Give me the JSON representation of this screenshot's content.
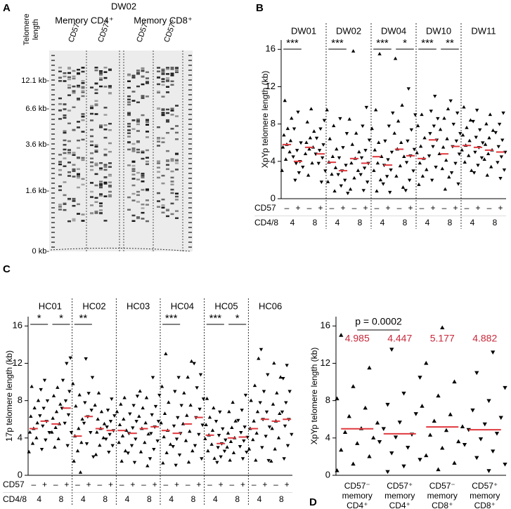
{
  "panel_a": {
    "panel_label": "A",
    "title": "DW02",
    "y_label": [
      "Telomere",
      "length"
    ],
    "groups": [
      "Memory CD4⁺",
      "Memory CD8⁺"
    ],
    "lanes": [
      "CD57⁻",
      "CD57⁺",
      "CD57⁻",
      "CD57⁺"
    ],
    "size_labels": [
      "12.1 kb-",
      "6.6 kb-",
      "3.6 kb-",
      "1.6 kb-",
      "0 kb-"
    ]
  },
  "chart_data": [
    {
      "type": "dotplot",
      "panel_label": "B",
      "y_label": "XpYp telomere length (kb)",
      "ylim": [
        0,
        17
      ],
      "yticks": [
        0,
        4,
        8,
        12,
        16
      ],
      "markers": [
        "triangle-up",
        "triangle-down"
      ],
      "color": "#000000",
      "median_color": "#e0393e",
      "facets": [
        {
          "name": "DW01",
          "stars": [
            "***",
            null
          ]
        },
        {
          "name": "DW02",
          "stars": [
            "***",
            null
          ]
        },
        {
          "name": "DW04",
          "stars": [
            "***",
            "*"
          ]
        },
        {
          "name": "DW10",
          "stars": [
            "***",
            "**"
          ]
        },
        {
          "name": "DW11",
          "stars": [
            null,
            null
          ]
        }
      ],
      "row_labels": [
        "CD57",
        "CD4/8"
      ],
      "cd57": [
        "–",
        "+"
      ],
      "cd48": [
        "4",
        "8"
      ],
      "groups": [
        {
          "median": 5.8,
          "values": [
            3.0,
            4.2,
            5.0,
            5.5,
            5.8,
            6.2,
            6.8,
            7.5,
            8.6,
            10.5
          ]
        },
        {
          "median": 4.0,
          "values": [
            2.0,
            2.8,
            3.4,
            3.8,
            4.0,
            4.5,
            5.2,
            6.0,
            7.5,
            9.3
          ]
        },
        {
          "median": 5.5,
          "values": [
            2.5,
            3.8,
            4.8,
            5.3,
            5.5,
            6.0,
            6.5,
            7.2,
            8.2,
            9.6
          ]
        },
        {
          "median": 4.8,
          "values": [
            1.8,
            3.0,
            3.8,
            4.4,
            4.8,
            5.2,
            5.8,
            6.5,
            7.5,
            8.4
          ]
        },
        {
          "median": 3.9,
          "values": [
            0.8,
            1.8,
            2.6,
            3.3,
            3.9,
            4.5,
            5.3,
            6.4,
            7.8,
            9.5
          ]
        },
        {
          "median": 3.0,
          "values": [
            0.6,
            1.4,
            2.0,
            2.6,
            3.0,
            3.6,
            4.4,
            5.5,
            7.0,
            8.6
          ]
        },
        {
          "median": 4.3,
          "values": [
            1.0,
            2.2,
            3.0,
            3.8,
            4.3,
            5.0,
            5.8,
            7.0,
            8.5,
            15.8
          ]
        },
        {
          "median": 3.8,
          "values": [
            0.9,
            1.8,
            2.6,
            3.3,
            3.8,
            4.4,
            5.2,
            6.3,
            7.8,
            9.8
          ]
        },
        {
          "median": 4.5,
          "values": [
            0.8,
            2.0,
            3.0,
            3.8,
            4.5,
            5.2,
            6.0,
            7.5,
            9.5,
            15.5
          ]
        },
        {
          "median": 3.6,
          "values": [
            0.7,
            1.6,
            2.4,
            3.1,
            3.6,
            4.2,
            5.0,
            6.2,
            7.8,
            9.2
          ]
        },
        {
          "median": 5.3,
          "values": [
            1.2,
            2.4,
            3.5,
            4.5,
            5.3,
            6.0,
            7.0,
            8.3,
            10.0,
            15.0
          ]
        },
        {
          "median": 4.6,
          "values": [
            0.9,
            2.0,
            3.0,
            3.9,
            4.6,
            5.3,
            6.2,
            7.4,
            9.0,
            11.8
          ]
        },
        {
          "median": 4.3,
          "values": [
            1.5,
            2.4,
            3.1,
            3.8,
            4.3,
            4.9,
            5.6,
            6.5,
            7.8,
            9.0
          ]
        },
        {
          "median": 6.3,
          "values": [
            2.0,
            3.4,
            4.6,
            5.6,
            6.3,
            7.0,
            7.8,
            8.6,
            9.4,
            11.0
          ]
        },
        {
          "median": 4.8,
          "values": [
            1.0,
            2.3,
            3.2,
            4.1,
            4.8,
            5.5,
            6.4,
            7.4,
            8.6,
            9.6
          ]
        },
        {
          "median": 5.6,
          "values": [
            1.6,
            2.8,
            3.8,
            4.8,
            5.6,
            6.2,
            7.0,
            8.0,
            9.2,
            10.5
          ]
        },
        {
          "median": 5.7,
          "values": [
            3.0,
            3.9,
            4.6,
            5.2,
            5.7,
            6.2,
            6.8,
            7.6,
            8.4,
            9.8
          ]
        },
        {
          "median": 5.5,
          "values": [
            2.8,
            3.6,
            4.4,
            5.0,
            5.5,
            6.0,
            6.6,
            7.4,
            8.3,
            9.5
          ]
        },
        {
          "median": 5.2,
          "values": [
            2.5,
            3.4,
            4.2,
            4.8,
            5.2,
            5.8,
            6.5,
            7.3,
            8.0,
            9.0
          ]
        },
        {
          "median": 5.0,
          "values": [
            2.2,
            3.1,
            3.9,
            4.5,
            5.0,
            5.6,
            6.3,
            7.1,
            8.0,
            9.2
          ]
        }
      ]
    },
    {
      "type": "dotplot",
      "panel_label": "C",
      "y_label": "17p telomere length (kb)",
      "ylim": [
        0,
        17
      ],
      "yticks": [
        0,
        4,
        8,
        12,
        16
      ],
      "markers": [
        "triangle-up",
        "triangle-down"
      ],
      "color": "#000000",
      "median_color": "#e0393e",
      "facets": [
        {
          "name": "HC01",
          "stars": [
            "*",
            "*"
          ]
        },
        {
          "name": "HC02",
          "stars": [
            "**",
            null
          ]
        },
        {
          "name": "HC03",
          "stars": [
            null,
            null
          ]
        },
        {
          "name": "HC04",
          "stars": [
            "***",
            null
          ]
        },
        {
          "name": "HC05",
          "stars": [
            "***",
            "*"
          ]
        },
        {
          "name": "HC06",
          "stars": [
            null,
            null
          ]
        }
      ],
      "row_labels": [
        "CD57",
        "CD4/8"
      ],
      "cd57": [
        "–",
        "+"
      ],
      "cd48": [
        "4",
        "8"
      ],
      "groups": [
        {
          "median": 5.0,
          "values": [
            2.5,
            3.4,
            4.0,
            4.6,
            5.0,
            5.6,
            6.3,
            7.2,
            8.0,
            9.5
          ]
        },
        {
          "median": 5.8,
          "values": [
            2.8,
            3.8,
            4.6,
            5.3,
            5.8,
            6.4,
            7.2,
            8.0,
            9.2,
            10.2
          ]
        },
        {
          "median": 5.5,
          "values": [
            3.0,
            3.9,
            4.6,
            5.1,
            5.5,
            6.1,
            6.8,
            7.6,
            8.5,
            9.4
          ]
        },
        {
          "median": 7.2,
          "values": [
            3.2,
            4.6,
            5.6,
            6.5,
            7.2,
            8.0,
            9.0,
            10.2,
            12.0,
            12.6
          ]
        },
        {
          "median": 4.2,
          "values": [
            0.3,
            1.5,
            2.6,
            3.5,
            4.2,
            5.0,
            6.0,
            7.4,
            8.6,
            9.8
          ]
        },
        {
          "median": 6.3,
          "values": [
            2.0,
            3.4,
            4.6,
            5.6,
            6.3,
            7.0,
            7.8,
            8.8,
            10.5,
            12.5
          ]
        },
        {
          "median": 5.0,
          "values": [
            2.2,
            3.2,
            4.0,
            4.6,
            5.0,
            5.5,
            6.0,
            6.8,
            7.5,
            8.8
          ]
        },
        {
          "median": 4.8,
          "values": [
            2.5,
            3.2,
            3.9,
            4.4,
            4.8,
            5.2,
            5.8,
            6.4,
            7.0,
            8.2
          ]
        },
        {
          "median": 4.8,
          "values": [
            1.5,
            2.6,
            3.5,
            4.2,
            4.8,
            5.4,
            6.0,
            6.8,
            7.6,
            8.3
          ]
        },
        {
          "median": 4.5,
          "values": [
            1.4,
            2.4,
            3.2,
            3.9,
            4.5,
            5.1,
            5.8,
            6.6,
            7.5,
            8.5
          ]
        },
        {
          "median": 5.0,
          "values": [
            1.0,
            2.5,
            3.5,
            4.4,
            5.0,
            5.6,
            6.3,
            7.2,
            8.3,
            9.0
          ]
        },
        {
          "median": 5.2,
          "values": [
            1.8,
            2.8,
            3.7,
            4.5,
            5.2,
            5.8,
            6.5,
            7.4,
            8.6,
            10.5
          ]
        },
        {
          "median": 4.8,
          "values": [
            1.3,
            2.4,
            3.3,
            4.1,
            4.8,
            5.6,
            6.6,
            7.8,
            9.5,
            13.0
          ]
        },
        {
          "median": 4.5,
          "values": [
            1.1,
            2.2,
            3.1,
            3.9,
            4.5,
            5.3,
            6.2,
            7.5,
            9.0,
            10.5
          ]
        },
        {
          "median": 5.5,
          "values": [
            1.4,
            2.6,
            3.7,
            4.7,
            5.5,
            6.4,
            7.5,
            8.8,
            10.5,
            12.2
          ]
        },
        {
          "median": 6.2,
          "values": [
            1.8,
            3.2,
            4.4,
            5.4,
            6.2,
            7.1,
            8.2,
            9.4,
            10.8,
            12.0
          ]
        },
        {
          "median": 4.3,
          "values": [
            1.8,
            2.6,
            3.3,
            3.9,
            4.3,
            4.8,
            5.4,
            6.2,
            7.2,
            8.2
          ]
        },
        {
          "median": 3.4,
          "values": [
            1.4,
            2.0,
            2.6,
            3.0,
            3.4,
            3.8,
            4.3,
            5.0,
            5.8,
            6.8
          ]
        },
        {
          "median": 4.0,
          "values": [
            1.6,
            2.4,
            3.0,
            3.6,
            4.0,
            4.5,
            5.1,
            5.8,
            6.8,
            7.8
          ]
        },
        {
          "median": 4.1,
          "values": [
            1.8,
            2.5,
            3.1,
            3.7,
            4.1,
            4.6,
            5.2,
            5.9,
            7.0,
            8.6
          ]
        },
        {
          "median": 5.0,
          "values": [
            1.6,
            2.8,
            3.8,
            4.5,
            5.0,
            5.8,
            6.8,
            8.0,
            9.6,
            12.5
          ]
        },
        {
          "median": 6.0,
          "values": [
            1.6,
            3.0,
            4.2,
            5.2,
            6.0,
            6.8,
            7.8,
            9.0,
            10.8,
            13.5
          ]
        },
        {
          "median": 5.8,
          "values": [
            1.5,
            2.8,
            4.0,
            5.0,
            5.8,
            6.6,
            7.6,
            8.8,
            10.5,
            12.0
          ]
        },
        {
          "median": 6.0,
          "values": [
            1.8,
            3.2,
            4.4,
            5.3,
            6.0,
            6.8,
            7.8,
            9.0,
            10.4,
            11.8
          ]
        }
      ]
    },
    {
      "type": "dotplot",
      "panel_label": "D",
      "y_label": "XpYp telomere length (kb)",
      "ylim": [
        0,
        17
      ],
      "yticks": [
        0,
        4,
        8,
        12,
        16
      ],
      "markers": [
        "triangle-up",
        "triangle-down"
      ],
      "color": "#000000",
      "median_color": "#e0393e",
      "label_color": "#c8283a",
      "annotation": "p = 0.0002",
      "categories": [
        [
          "CD57⁻",
          "memory",
          "CD4⁺"
        ],
        [
          "CD57⁺",
          "memory",
          "CD4⁺"
        ],
        [
          "CD57⁻",
          "memory",
          "CD8⁺"
        ],
        [
          "CD57⁺",
          "memory",
          "CD8⁺"
        ]
      ],
      "groups": [
        {
          "median": 4.985,
          "values": [
            0.5,
            1.2,
            2.0,
            2.7,
            3.4,
            4.0,
            4.6,
            5.0,
            5.6,
            6.3,
            7.2,
            8.2,
            9.5,
            11.5,
            15.0
          ]
        },
        {
          "median": 4.447,
          "values": [
            0.4,
            1.0,
            1.7,
            2.4,
            3.0,
            3.6,
            4.1,
            4.4,
            5.0,
            5.7,
            6.6,
            7.6,
            8.8,
            10.5,
            13.5
          ]
        },
        {
          "median": 5.177,
          "values": [
            0.6,
            1.3,
            2.1,
            2.9,
            3.6,
            4.3,
            4.8,
            5.2,
            5.8,
            6.5,
            7.4,
            8.5,
            10.0,
            12.0,
            15.8
          ]
        },
        {
          "median": 4.882,
          "values": [
            0.5,
            1.2,
            1.9,
            2.6,
            3.3,
            3.9,
            4.5,
            4.9,
            5.5,
            6.2,
            7.0,
            8.0,
            9.4,
            11.0,
            13.2
          ]
        }
      ]
    }
  ]
}
